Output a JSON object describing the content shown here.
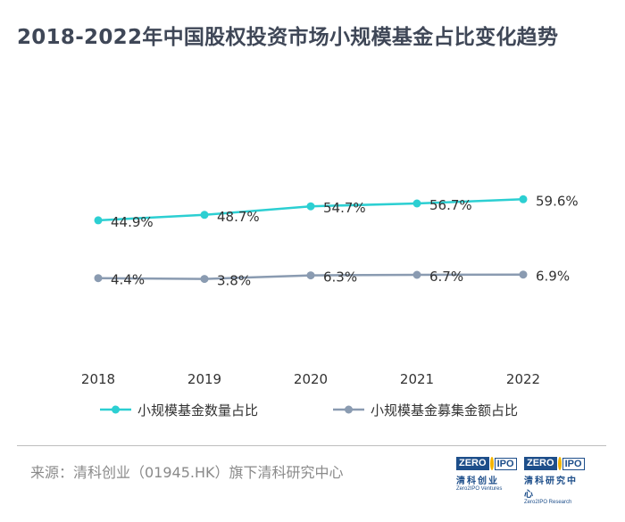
{
  "title": "2018-2022年中国股权投资市场小规模基金占比变化趋势",
  "chart_data": {
    "type": "line",
    "categories": [
      "2018",
      "2019",
      "2020",
      "2021",
      "2022"
    ],
    "series": [
      {
        "name": "小规模基金数量占比",
        "values": [
          44.9,
          48.7,
          54.7,
          56.7,
          59.6
        ],
        "labels": [
          "44.9%",
          "48.7%",
          "54.7%",
          "56.7%",
          "59.6%"
        ],
        "color": "#2ccfd2"
      },
      {
        "name": "小规模基金募集金额占比",
        "values": [
          4.4,
          3.8,
          6.3,
          6.7,
          6.9
        ],
        "labels": [
          "4.4%",
          "3.8%",
          "6.3%",
          "6.7%",
          "6.9%"
        ],
        "color": "#8a9bb1"
      }
    ],
    "ylabel": "",
    "xlabel": ""
  },
  "source": "来源：清科创业（01945.HK）旗下清科研究中心",
  "logos": [
    {
      "box1": "ZERO",
      "box2": "IPO",
      "cn": "清科创业",
      "en": "Zero2IPO Ventures"
    },
    {
      "box1": "ZERO",
      "box2": "IPO",
      "cn": "清科研究中心",
      "en": "Zero2IPO Research"
    }
  ]
}
